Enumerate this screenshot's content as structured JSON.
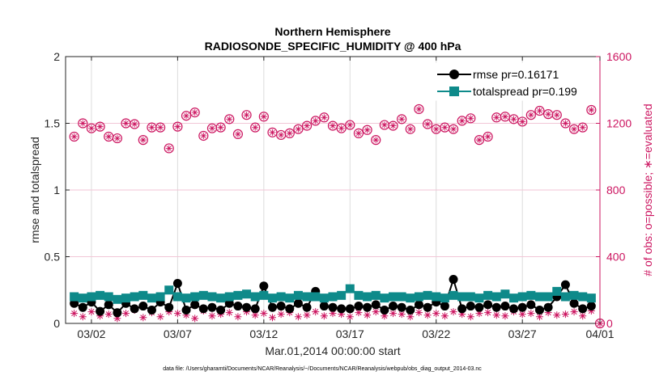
{
  "chart_data": {
    "type": "line",
    "title": [
      "Northern Hemisphere",
      "RADIOSONDE_SPECIFIC_HUMIDITY @ 400 hPa"
    ],
    "xlabel": "Mar.01,2014 00:00:00 start",
    "ylabel": "rmse and totalspread",
    "ylabel_right": "# of obs: o=possible; ∗=evaluated",
    "footer": "data file: /Users/gharamti/Documents/NCAR/Reanalysis/~/Documents/NCAR/Reanalysis/webpub/obs_diag_output_2014-03.nc",
    "xlim": [
      0.5,
      31.5
    ],
    "ylim": [
      0,
      2
    ],
    "ylim_right": [
      0,
      1600
    ],
    "x_ticks": [
      {
        "value": 2,
        "label": "03/02"
      },
      {
        "value": 7,
        "label": "03/07"
      },
      {
        "value": 12,
        "label": "03/12"
      },
      {
        "value": 17,
        "label": "03/17"
      },
      {
        "value": 22,
        "label": "03/22"
      },
      {
        "value": 27,
        "label": "03/27"
      },
      {
        "value": 32,
        "label": "04/01"
      }
    ],
    "y_ticks": [
      {
        "value": 0,
        "label": "0"
      },
      {
        "value": 0.5,
        "label": "0.5"
      },
      {
        "value": 1,
        "label": "1"
      },
      {
        "value": 1.5,
        "label": "1.5"
      },
      {
        "value": 2,
        "label": "2"
      }
    ],
    "y_ticks_right": [
      {
        "value": 0,
        "label": "0"
      },
      {
        "value": 400,
        "label": "400"
      },
      {
        "value": 800,
        "label": "800"
      },
      {
        "value": 1200,
        "label": "1200"
      },
      {
        "value": 1600,
        "label": "1600"
      }
    ],
    "grid": true,
    "legend_position": "top-right",
    "series": [
      {
        "name": "rmse",
        "legend": "rmse pr=0.16171",
        "color": "#000000",
        "marker": "circle",
        "axis": "left",
        "x": [
          1.0,
          1.5,
          2.0,
          2.5,
          3.0,
          3.5,
          4.0,
          4.5,
          5.0,
          5.5,
          6.0,
          6.5,
          7.0,
          7.5,
          8.0,
          8.5,
          9.0,
          9.5,
          10.0,
          10.5,
          11.0,
          11.5,
          12.0,
          12.5,
          13.0,
          13.5,
          14.0,
          14.5,
          15.0,
          15.5,
          16.0,
          16.5,
          17.0,
          17.5,
          18.0,
          18.5,
          19.0,
          19.5,
          20.0,
          20.5,
          21.0,
          21.5,
          22.0,
          22.5,
          23.0,
          23.5,
          24.0,
          24.5,
          25.0,
          25.5,
          26.0,
          26.5,
          27.0,
          27.5,
          28.0,
          28.5,
          29.0,
          29.5,
          30.0,
          30.5,
          31.0
        ],
        "values": [
          0.15,
          0.12,
          0.16,
          0.09,
          0.14,
          0.08,
          0.15,
          0.11,
          0.13,
          0.1,
          0.16,
          0.12,
          0.3,
          0.1,
          0.14,
          0.11,
          0.12,
          0.1,
          0.15,
          0.13,
          0.12,
          0.11,
          0.28,
          0.12,
          0.13,
          0.11,
          0.15,
          0.12,
          0.24,
          0.13,
          0.12,
          0.11,
          0.11,
          0.13,
          0.12,
          0.14,
          0.1,
          0.13,
          0.12,
          0.1,
          0.14,
          0.12,
          0.16,
          0.13,
          0.33,
          0.11,
          0.13,
          0.12,
          0.14,
          0.12,
          0.13,
          0.11,
          0.12,
          0.14,
          0.1,
          0.12,
          0.2,
          0.29,
          0.15,
          0.11,
          0.13
        ]
      },
      {
        "name": "totalspread",
        "legend": "totalspread pr=0.199",
        "color": "#0e8a8a",
        "marker": "square",
        "axis": "left",
        "x": [
          1.0,
          1.5,
          2.0,
          2.5,
          3.0,
          3.5,
          4.0,
          4.5,
          5.0,
          5.5,
          6.0,
          6.5,
          7.0,
          7.5,
          8.0,
          8.5,
          9.0,
          9.5,
          10.0,
          10.5,
          11.0,
          11.5,
          12.0,
          12.5,
          13.0,
          13.5,
          14.0,
          14.5,
          15.0,
          15.5,
          16.0,
          16.5,
          17.0,
          17.5,
          18.0,
          18.5,
          19.0,
          19.5,
          20.0,
          20.5,
          21.0,
          21.5,
          22.0,
          22.5,
          23.0,
          23.5,
          24.0,
          24.5,
          25.0,
          25.5,
          26.0,
          26.5,
          27.0,
          27.5,
          28.0,
          28.5,
          29.0,
          29.5,
          30.0,
          30.5,
          31.0
        ],
        "values": [
          0.2,
          0.19,
          0.2,
          0.21,
          0.2,
          0.18,
          0.19,
          0.2,
          0.21,
          0.19,
          0.2,
          0.25,
          0.2,
          0.19,
          0.2,
          0.21,
          0.2,
          0.19,
          0.2,
          0.21,
          0.22,
          0.2,
          0.21,
          0.19,
          0.2,
          0.19,
          0.21,
          0.2,
          0.2,
          0.19,
          0.2,
          0.21,
          0.26,
          0.21,
          0.2,
          0.21,
          0.19,
          0.2,
          0.2,
          0.19,
          0.2,
          0.21,
          0.2,
          0.19,
          0.21,
          0.2,
          0.2,
          0.19,
          0.21,
          0.2,
          0.22,
          0.19,
          0.2,
          0.21,
          0.2,
          0.2,
          0.24,
          0.2,
          0.21,
          0.2,
          0.19
        ]
      },
      {
        "name": "possible",
        "color": "#cc1560",
        "marker": "circle-open",
        "axis": "right",
        "x": [
          1.0,
          1.5,
          2.0,
          2.5,
          3.0,
          3.5,
          4.0,
          4.5,
          5.0,
          5.5,
          6.0,
          6.5,
          7.0,
          7.5,
          8.0,
          8.5,
          9.0,
          9.5,
          10.0,
          10.5,
          11.0,
          11.5,
          12.0,
          12.5,
          13.0,
          13.5,
          14.0,
          14.5,
          15.0,
          15.5,
          16.0,
          16.5,
          17.0,
          17.5,
          18.0,
          18.5,
          19.0,
          19.5,
          20.0,
          20.5,
          21.0,
          21.5,
          22.0,
          22.5,
          23.0,
          23.5,
          24.0,
          24.5,
          25.0,
          25.5,
          26.0,
          26.5,
          27.0,
          27.5,
          28.0,
          28.5,
          29.0,
          29.5,
          30.0,
          30.5,
          31.0,
          31.5
        ],
        "values": [
          1120,
          1200,
          1170,
          1180,
          1120,
          1110,
          1200,
          1195,
          1100,
          1175,
          1175,
          1050,
          1180,
          1245,
          1265,
          1125,
          1170,
          1175,
          1225,
          1135,
          1250,
          1175,
          1240,
          1145,
          1130,
          1140,
          1165,
          1185,
          1215,
          1235,
          1185,
          1170,
          1190,
          1140,
          1160,
          1100,
          1190,
          1185,
          1225,
          1165,
          1285,
          1195,
          1165,
          1175,
          1165,
          1215,
          1230,
          1100,
          1120,
          1235,
          1240,
          1225,
          1210,
          1250,
          1275,
          1255,
          1250,
          1200,
          1165,
          1175,
          1280,
          0
        ]
      },
      {
        "name": "evaluated",
        "color": "#cc1560",
        "marker": "asterisk",
        "axis": "right",
        "x": [
          1.0,
          1.5,
          2.0,
          2.5,
          3.0,
          3.5,
          4.0,
          4.5,
          5.0,
          5.5,
          6.0,
          6.5,
          7.0,
          7.5,
          8.0,
          8.5,
          9.0,
          9.5,
          10.0,
          10.5,
          11.0,
          11.5,
          12.0,
          12.5,
          13.0,
          13.5,
          14.0,
          14.5,
          15.0,
          15.5,
          16.0,
          16.5,
          17.0,
          17.5,
          18.0,
          18.5,
          19.0,
          19.5,
          20.0,
          20.5,
          21.0,
          21.5,
          22.0,
          22.5,
          23.0,
          23.5,
          24.0,
          24.5,
          25.0,
          25.5,
          26.0,
          26.5,
          27.0,
          27.5,
          28.0,
          28.5,
          29.0,
          29.5,
          30.0,
          30.5,
          31.0,
          31.5
        ],
        "values": [
          60,
          40,
          70,
          45,
          55,
          30,
          60,
          80,
          35,
          65,
          40,
          70,
          60,
          50,
          30,
          75,
          45,
          55,
          65,
          40,
          70,
          50,
          60,
          35,
          55,
          65,
          40,
          50,
          70,
          45,
          60,
          55,
          40,
          65,
          50,
          70,
          45,
          60,
          55,
          40,
          65,
          50,
          60,
          45,
          70,
          55,
          40,
          60,
          65,
          50,
          45,
          70,
          55,
          60,
          40,
          65,
          50,
          55,
          70,
          45,
          75,
          0
        ]
      }
    ]
  }
}
